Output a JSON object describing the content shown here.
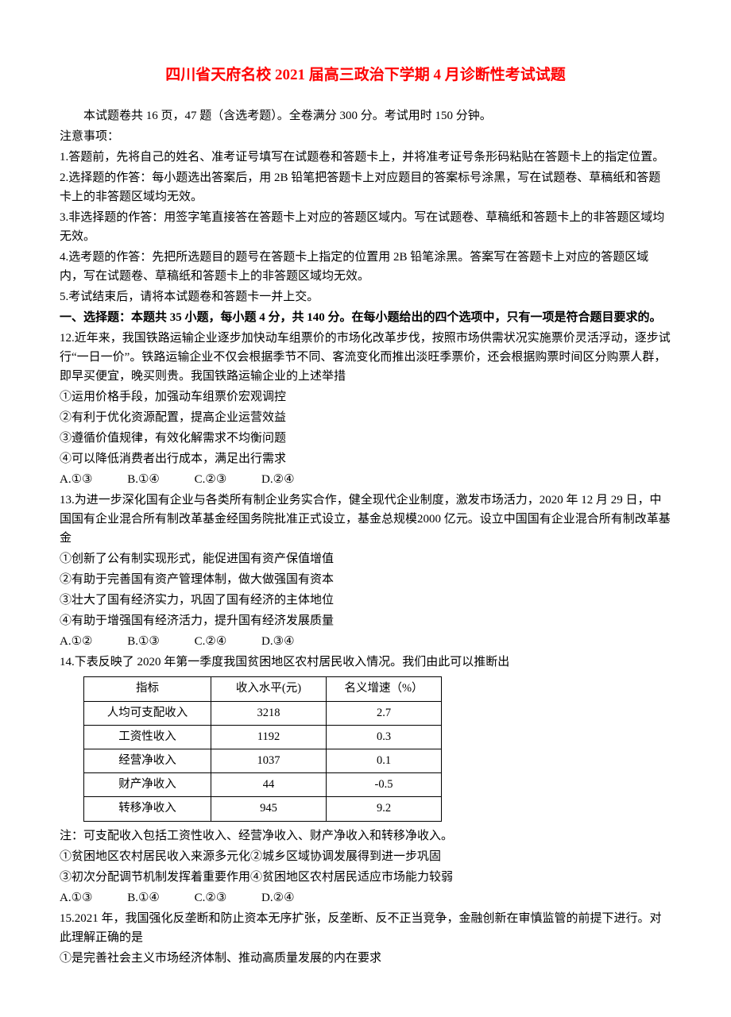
{
  "title": "四川省天府名校 2021 届高三政治下学期 4 月诊断性考试试题",
  "intro": "本试题卷共 16 页，47 题（含选考题）。全卷满分 300 分。考试用时 150 分钟。",
  "notice_label": "注意事项：",
  "notices": [
    "1.答题前，先将自己的姓名、准考证号填写在试题卷和答题卡上，并将准考证号条形码粘贴在答题卡上的指定位置。",
    "2.选择题的作答：每小题选出答案后，用 2B 铅笔把答题卡上对应题目的答案标号涂黑，写在试题卷、草稿纸和答题卡上的非答题区域均无效。",
    "3.非选择题的作答：用签字笔直接答在答题卡上对应的答题区域内。写在试题卷、草稿纸和答题卡上的非答题区域均无效。",
    "4.选考题的作答：先把所选题目的题号在答题卡上指定的位置用 2B 铅笔涂黑。答案写在答题卡上对应的答题区域内，写在试题卷、草稿纸和答题卡上的非答题区域均无效。",
    "5.考试结束后，请将本试题卷和答题卡一并上交。"
  ],
  "section1": "一、选择题：本题共 35 小题，每小题 4 分，共 140 分。在每小题给出的四个选项中，只有一项是符合题目要求的。",
  "q12": {
    "stem": "12.近年来，我国铁路运输企业逐步加快动车组票价的市场化改革步伐，按照市场供需状况实施票价灵活浮动，逐步试行“一日一价”。铁路运输企业不仅会根据季节不同、客流变化而推出淡旺季票价，还会根据购票时间区分购票人群，即早买便宜，晚买则贵。我国铁路运输企业的上述举措",
    "items": [
      "①运用价格手段，加强动车组票价宏观调控",
      "②有利于优化资源配置，提高企业运营效益",
      "③遵循价值规律，有效化解需求不均衡问题",
      "④可以降低消费者出行成本，满足出行需求"
    ],
    "opts": [
      "A.①③",
      "B.①④",
      "C.②③",
      "D.②④"
    ]
  },
  "q13": {
    "stem": "13.为进一步深化国有企业与各类所有制企业务实合作，健全现代企业制度，激发市场活力，2020 年 12 月 29 日，中国国有企业混合所有制改革基金经国务院批准正式设立，基金总规模2000 亿元。设立中国国有企业混合所有制改革基金",
    "items": [
      "①创新了公有制实现形式，能促进国有资产保值增值",
      "②有助于完善国有资产管理体制，做大做强国有资本",
      "③壮大了国有经济实力，巩固了国有经济的主体地位",
      "④有助于增强国有经济活力，提升国有经济发展质量"
    ],
    "opts": [
      "A.①②",
      "B.①③",
      "C.②④",
      "D.③④"
    ]
  },
  "q14": {
    "stem": "14.下表反映了 2020 年第一季度我国贫困地区农村居民收入情况。我们由此可以推断出",
    "table": {
      "headers": [
        "指标",
        "收入水平(元)",
        "名义增速（%）"
      ],
      "col_widths": [
        "160px",
        "145px",
        "145px"
      ],
      "rows": [
        [
          "人均可支配收入",
          "3218",
          "2.7"
        ],
        [
          "工资性收入",
          "1192",
          "0.3"
        ],
        [
          "经营净收入",
          "1037",
          "0.1"
        ],
        [
          "财产净收入",
          "44",
          "-0.5"
        ],
        [
          "转移净收入",
          "945",
          "9.2"
        ]
      ]
    },
    "note": "注：可支配收入包括工资性收入、经营净收入、财产净收入和转移净收入。",
    "items": [
      "①贫困地区农村居民收入来源多元化②城乡区域协调发展得到进一步巩固",
      "③初次分配调节机制发挥着重要作用④贫困地区农村居民适应市场能力较弱"
    ],
    "opts": [
      "A.①③",
      "B.①④",
      "C.②③",
      "D.②④"
    ]
  },
  "q15": {
    "stem": "15.2021 年，我国强化反垄断和防止资本无序扩张，反垄断、反不正当竞争，金融创新在审慎监管的前提下进行。对此理解正确的是",
    "items": [
      "①是完善社会主义市场经济体制、推动高质量发展的内在要求"
    ]
  },
  "colors": {
    "title": "#ff0000",
    "text": "#000000",
    "bg": "#ffffff",
    "table_border": "#000000"
  }
}
